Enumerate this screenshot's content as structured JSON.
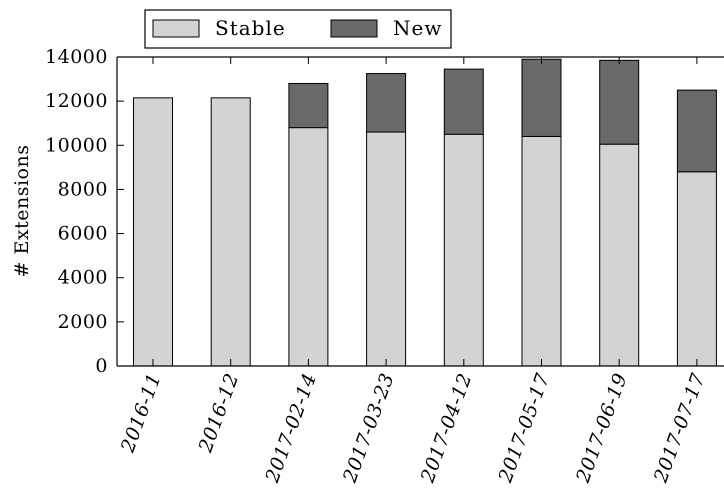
{
  "chart_data": {
    "type": "bar",
    "stacked": true,
    "categories": [
      "2016-11",
      "2016-12",
      "2017-02-14",
      "2017-03-23",
      "2017-04-12",
      "2017-05-17",
      "2017-06-19",
      "2017-07-17"
    ],
    "series": [
      {
        "name": "Stable",
        "values": [
          12150,
          12150,
          10800,
          10600,
          10500,
          10400,
          10050,
          8800
        ],
        "color": "#d3d3d3"
      },
      {
        "name": "New",
        "values": [
          0,
          0,
          2000,
          2650,
          2950,
          3500,
          3800,
          3700
        ],
        "color": "#696969"
      }
    ],
    "ylabel": "# Extensions",
    "xlabel": "",
    "ylim": [
      0,
      14000
    ],
    "yticks": [
      "0",
      "2000",
      "4000",
      "6000",
      "8000",
      "10000",
      "12000",
      "14000"
    ],
    "legend_position": "top-left",
    "grid": false
  }
}
